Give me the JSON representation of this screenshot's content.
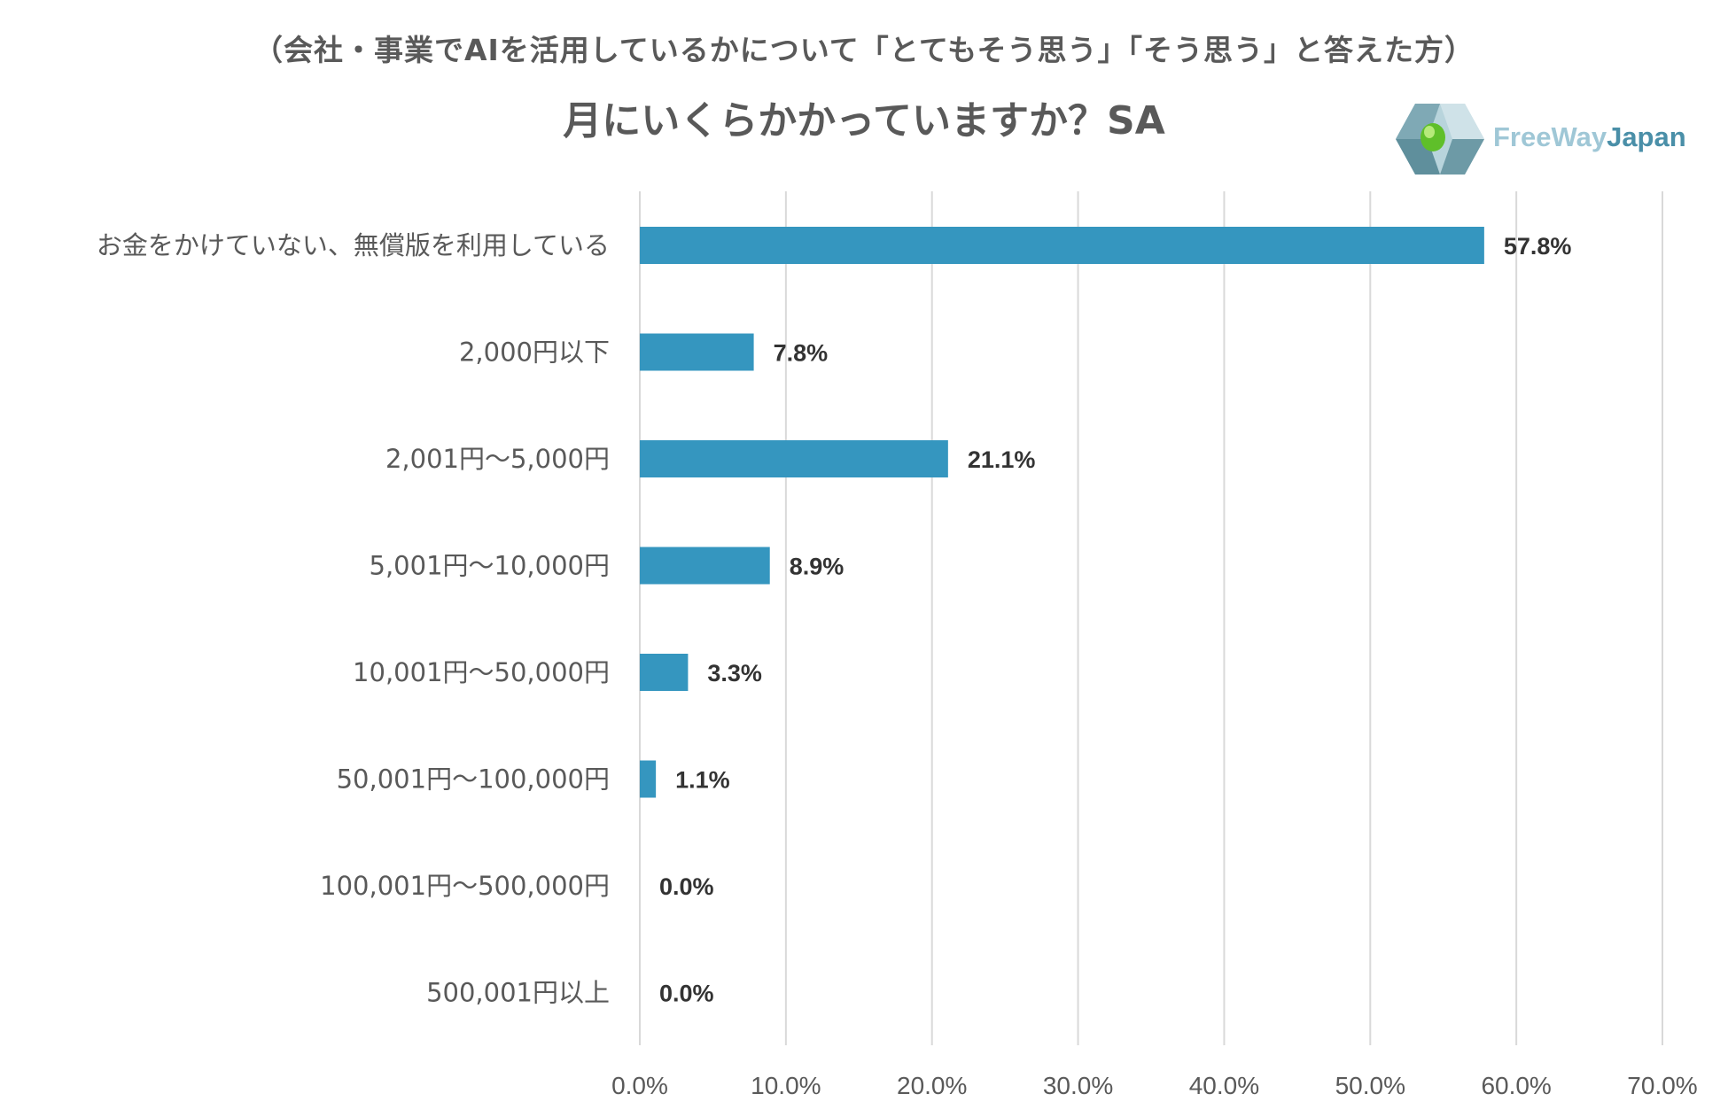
{
  "header": {
    "subtitle": "（会社・事業でAIを活用しているかについて「とてもそう思う」「そう思う」と答えた方）",
    "title": "月にいくらかかっていますか？SA"
  },
  "logo": {
    "text_free": "FreeWay",
    "text_japan": "Japan"
  },
  "colors": {
    "bar": "#3596bf",
    "grid": "#d9d9d9",
    "logo_dark": "#5f8f9c",
    "logo_light": "#b8d4dc",
    "logo_green": "#5fbf2a"
  },
  "chart_data": {
    "type": "bar",
    "orientation": "horizontal",
    "title": "月にいくらかかっていますか？SA",
    "categories": [
      "お金をかけていない、無償版を利用している",
      "2,000円以下",
      "2,001円〜5,000円",
      "5,001円〜10,000円",
      "10,001円〜50,000円",
      "50,001円〜100,000円",
      "100,001円〜500,000円",
      "500,001円以上"
    ],
    "values": [
      57.8,
      7.8,
      21.1,
      8.9,
      3.3,
      1.1,
      0.0,
      0.0
    ],
    "value_labels": [
      "57.8%",
      "7.8%",
      "21.1%",
      "8.9%",
      "3.3%",
      "1.1%",
      "0.0%",
      "0.0%"
    ],
    "xlim": [
      0,
      70
    ],
    "xticks": [
      0,
      10,
      20,
      30,
      40,
      50,
      60,
      70
    ],
    "xtick_labels": [
      "0.0%",
      "10.0%",
      "20.0%",
      "30.0%",
      "40.0%",
      "50.0%",
      "60.0%",
      "70.0%"
    ],
    "grid": true,
    "xlabel": "",
    "ylabel": ""
  }
}
